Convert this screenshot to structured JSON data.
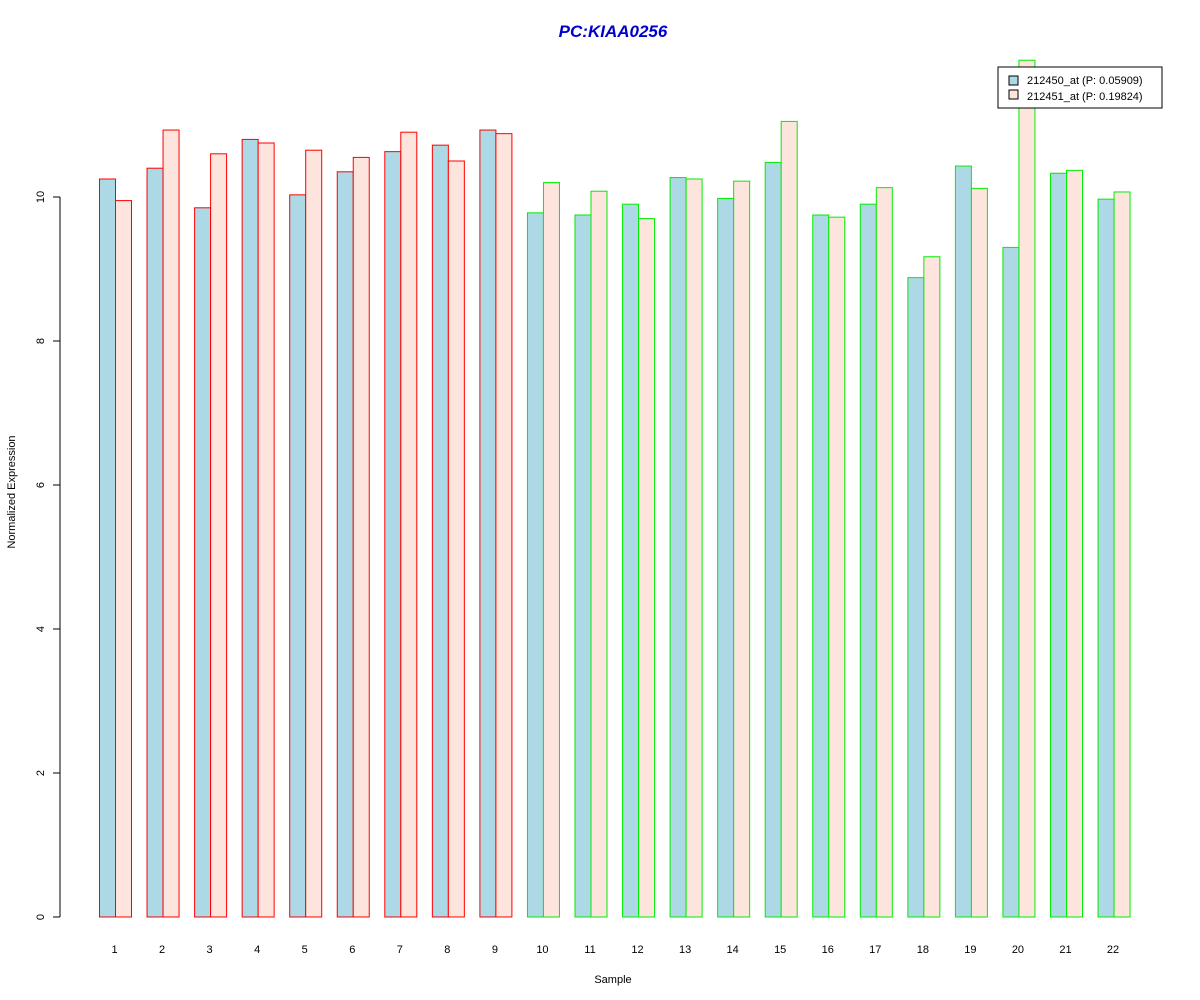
{
  "colors": {
    "title": "#0000cc",
    "series1_fill": "#add8e6",
    "series2_fill": "#fde4dd",
    "group_red_border": "#ff0000",
    "group_green_border": "#00ee00",
    "axis": "#000000"
  },
  "chart_data": {
    "type": "bar",
    "title": "PC:KIAA0256",
    "xlabel": "Sample",
    "ylabel": "Normalized Expression",
    "ylim": [
      0,
      12
    ],
    "yticks": [
      0,
      2,
      4,
      6,
      8,
      10
    ],
    "grid": false,
    "legend_position": "top-right",
    "categories": [
      "1",
      "2",
      "3",
      "4",
      "5",
      "6",
      "7",
      "8",
      "9",
      "10",
      "11",
      "12",
      "13",
      "14",
      "15",
      "16",
      "17",
      "18",
      "19",
      "20",
      "21",
      "22"
    ],
    "groups": [
      "red",
      "red",
      "red",
      "red",
      "red",
      "red",
      "red",
      "red",
      "red",
      "green",
      "green",
      "green",
      "green",
      "green",
      "green",
      "green",
      "green",
      "green",
      "green",
      "green",
      "green",
      "green"
    ],
    "series": [
      {
        "name": "212450_at (P: 0.05909)",
        "values": [
          10.25,
          10.4,
          9.85,
          10.8,
          10.03,
          10.35,
          10.63,
          10.72,
          10.93,
          9.78,
          9.75,
          9.9,
          10.27,
          9.98,
          10.48,
          9.75,
          9.9,
          8.88,
          10.43,
          9.3,
          10.33,
          9.97
        ]
      },
      {
        "name": "212451_at (P: 0.19824)",
        "values": [
          9.95,
          10.93,
          10.6,
          10.75,
          10.65,
          10.55,
          10.9,
          10.5,
          10.88,
          10.2,
          10.08,
          9.7,
          10.25,
          10.22,
          11.05,
          9.72,
          10.13,
          9.17,
          10.12,
          11.9,
          10.37,
          10.07
        ]
      }
    ]
  }
}
